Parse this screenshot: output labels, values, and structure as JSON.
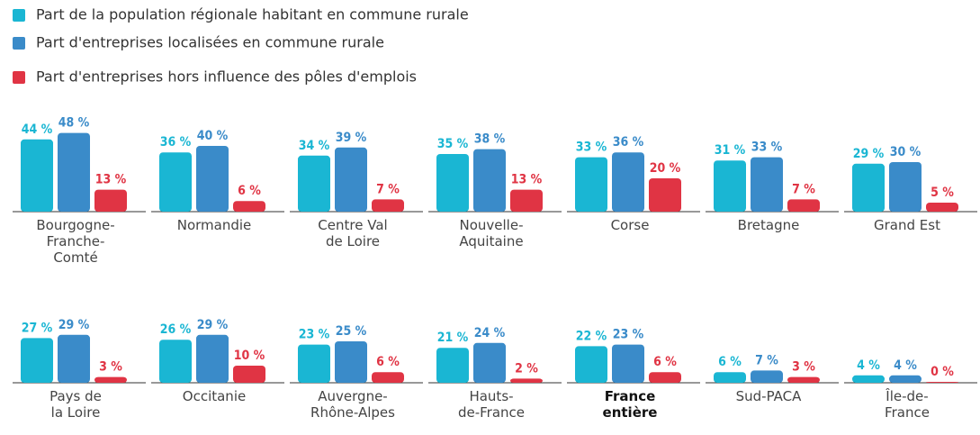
{
  "chart_data": {
    "type": "bar",
    "categories": [
      "Bourgogne-\nFranche-\nComté",
      "Normandie",
      "Centre Val\nde Loire",
      "Nouvelle-\nAquitaine",
      "Corse",
      "Bretagne",
      "Grand Est",
      "Pays de\nla Loire",
      "Occitanie",
      "Auvergne-\nRhône-Alpes",
      "Hauts-\nde-France",
      "France\nentière",
      "Sud-PACA",
      "Île-de-\nFrance"
    ],
    "highlight": [
      "France\nentière"
    ],
    "series": [
      {
        "name": "Part de la population régionale habitant en commune rurale",
        "color": "#1ab6d3",
        "values": [
          44,
          36,
          34,
          35,
          33,
          31,
          29,
          27,
          26,
          23,
          21,
          22,
          6,
          4
        ],
        "value_labels": [
          "44 %",
          "36 %",
          "34 %",
          "35 %",
          "33 %",
          "31 %",
          "29 %",
          "27 %",
          "26 %",
          "23 %",
          "21 %",
          "22 %",
          "6 %",
          "4 %"
        ]
      },
      {
        "name": "Part d'entreprises localisées en commune rurale",
        "color": "#3a8bc9",
        "values": [
          48,
          40,
          39,
          38,
          36,
          33,
          30,
          29,
          29,
          25,
          24,
          23,
          7,
          4
        ],
        "value_labels": [
          "48 %",
          "40 %",
          "39 %",
          "38 %",
          "36 %",
          "33 %",
          "30 %",
          "29 %",
          "29 %",
          "25 %",
          "24 %",
          "23 %",
          "7 %",
          "4 %"
        ]
      },
      {
        "name": "Part d'entreprises hors influence des pôles d'emplois",
        "color": "#e03444",
        "values": [
          13,
          6,
          7,
          13,
          20,
          7,
          5,
          3,
          10,
          6,
          2,
          6,
          3,
          0
        ],
        "value_labels": [
          "13 %",
          "6 %",
          "7 %",
          "13 %",
          "20 %",
          "7 %",
          "5 %",
          "3 %",
          "10 %",
          "6 %",
          "2 %",
          "6 %",
          "3 %",
          "0 %"
        ]
      }
    ]
  }
}
